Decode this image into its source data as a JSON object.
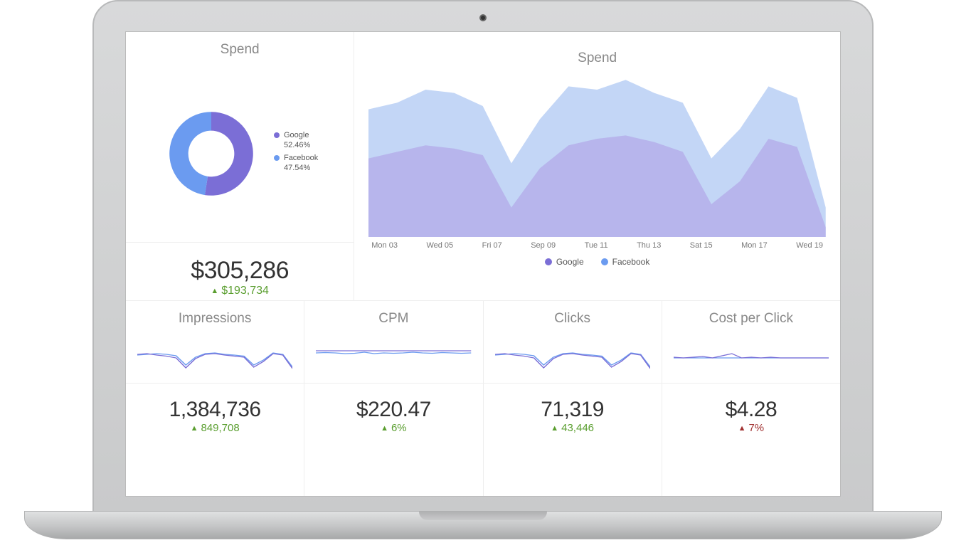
{
  "colors": {
    "google": "#7b6ed6",
    "facebook": "#6b9bf0",
    "google_fill": "#b3a9e8",
    "facebook_fill": "#a9c4f2",
    "text_muted": "#888888",
    "up": "#5a9e2f",
    "down": "#a03030",
    "grid": "#eeeeee",
    "bg": "#ffffff"
  },
  "spend_donut": {
    "title": "Spend",
    "type": "donut",
    "inner_radius": 0.55,
    "series": [
      {
        "label": "Google",
        "pct": "52.46%",
        "value": 52.46,
        "color": "#7b6ed6"
      },
      {
        "label": "Facebook",
        "pct": "47.54%",
        "value": 47.54,
        "color": "#6b9bf0"
      }
    ]
  },
  "spend_total": {
    "value": "$305,286",
    "delta": "$193,734",
    "direction": "up"
  },
  "spend_area": {
    "title": "Spend",
    "type": "area",
    "x_labels": [
      "Mon 03",
      "Wed 05",
      "Fri 07",
      "Sep 09",
      "Tue 11",
      "Thu 13",
      "Sat 15",
      "Mon 17",
      "Wed 19"
    ],
    "ylim": [
      0,
      100
    ],
    "legend": [
      {
        "label": "Google",
        "color": "#7b6ed6"
      },
      {
        "label": "Facebook",
        "color": "#6b9bf0"
      }
    ],
    "series": {
      "facebook": {
        "color": "#6b9bf0",
        "fill": "#a9c4f2",
        "fill_opacity": 0.7,
        "points": [
          78,
          82,
          90,
          88,
          80,
          45,
          72,
          92,
          90,
          96,
          88,
          82,
          48,
          66,
          92,
          85,
          18
        ]
      },
      "google": {
        "color": "#7b6ed6",
        "fill": "#b3a9e8",
        "fill_opacity": 0.75,
        "points": [
          48,
          52,
          56,
          54,
          50,
          18,
          42,
          56,
          60,
          62,
          58,
          52,
          20,
          34,
          60,
          55,
          6
        ]
      }
    }
  },
  "metrics": [
    {
      "title": "Impressions",
      "value": "1,384,736",
      "delta": "849,708",
      "direction": "up",
      "spark": {
        "a": {
          "color": "#7b6ed6",
          "points": [
            60,
            62,
            58,
            55,
            50,
            22,
            48,
            60,
            62,
            58,
            55,
            52,
            24,
            40,
            62,
            58,
            20
          ]
        },
        "b": {
          "color": "#6b9bf0",
          "points": [
            58,
            60,
            62,
            60,
            56,
            30,
            52,
            62,
            64,
            60,
            58,
            55,
            30,
            44,
            64,
            60,
            24
          ]
        }
      }
    },
    {
      "title": "CPM",
      "value": "$220.47",
      "delta": "6%",
      "direction": "up",
      "spark": {
        "a": {
          "color": "#7b6ed6",
          "points": [
            70,
            70,
            70,
            70,
            70,
            70,
            70,
            70,
            70,
            70,
            70,
            70,
            70,
            70,
            70,
            70,
            70
          ]
        },
        "b": {
          "color": "#6b9bf0",
          "points": [
            64,
            65,
            64,
            62,
            63,
            66,
            62,
            64,
            63,
            64,
            66,
            64,
            63,
            65,
            64,
            63,
            64
          ]
        }
      }
    },
    {
      "title": "Clicks",
      "value": "71,319",
      "delta": "43,446",
      "direction": "up",
      "spark": {
        "a": {
          "color": "#7b6ed6",
          "points": [
            60,
            62,
            58,
            55,
            50,
            22,
            48,
            60,
            62,
            58,
            55,
            52,
            24,
            40,
            62,
            58,
            20
          ]
        },
        "b": {
          "color": "#6b9bf0",
          "points": [
            58,
            60,
            62,
            60,
            56,
            30,
            52,
            62,
            64,
            60,
            58,
            55,
            30,
            44,
            64,
            60,
            24
          ]
        }
      }
    },
    {
      "title": "Cost per Click",
      "value": "$4.28",
      "delta": "7%",
      "direction": "down",
      "spark": {
        "a": {
          "color": "#7b6ed6",
          "points": [
            52,
            50,
            52,
            54,
            50,
            56,
            62,
            50,
            52,
            50,
            52,
            50,
            50,
            50,
            50,
            50,
            50
          ]
        },
        "b": {
          "color": "#6b9bf0",
          "points": [
            50,
            50,
            50,
            50,
            50,
            50,
            50,
            50,
            50,
            50,
            50,
            50,
            50,
            50,
            50,
            50,
            50
          ]
        }
      }
    }
  ]
}
